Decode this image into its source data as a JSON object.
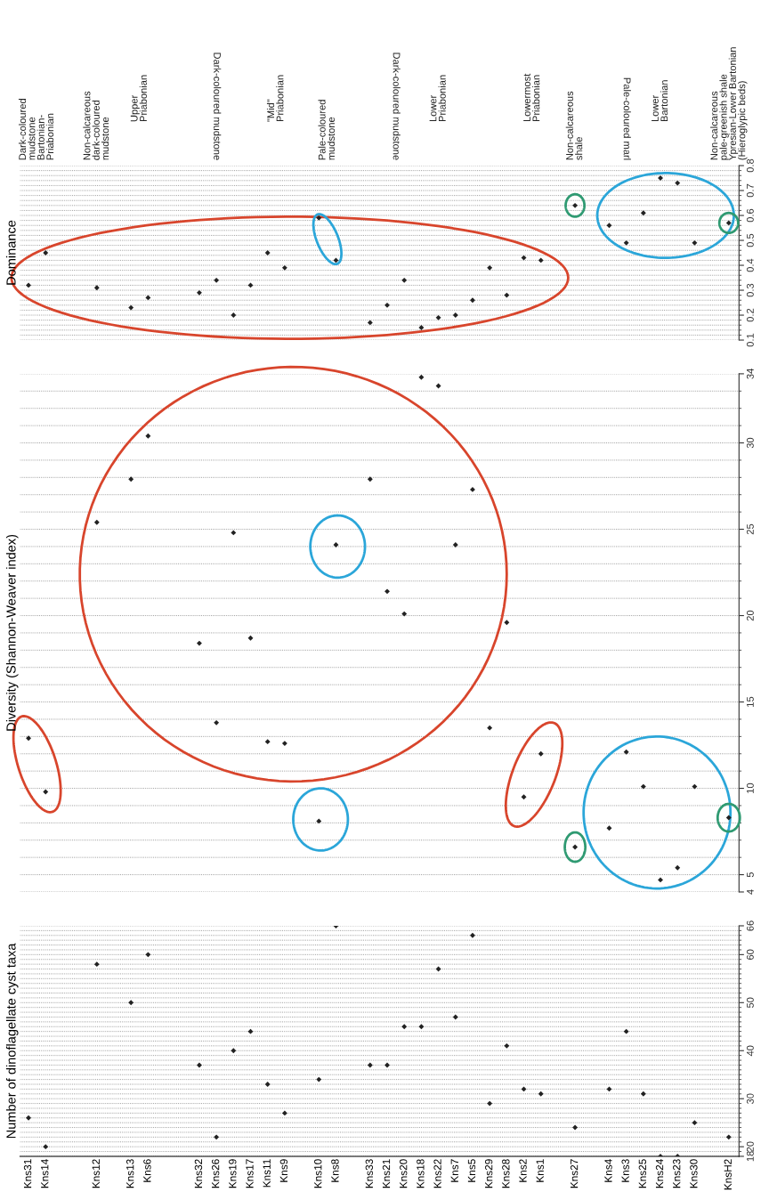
{
  "chart_data": [
    {
      "type": "scatter",
      "title": "Dominance",
      "values": [
        0.32,
        0.45,
        null,
        null,
        0.31,
        null,
        0.23,
        0.27,
        null,
        null,
        0.29,
        0.34,
        0.2,
        0.32,
        0.45,
        0.39,
        null,
        0.59,
        0.42,
        null,
        0.17,
        0.24,
        0.34,
        0.15,
        0.19,
        0.2,
        0.26,
        0.39,
        0.28,
        0.43,
        0.42,
        null,
        0.64,
        null,
        0.56,
        0.49,
        0.61,
        0.75,
        0.73,
        0.49,
        null,
        0.57
      ],
      "color": "#222222",
      "marker": "diamond",
      "grid": "y",
      "tick_labels": "y",
      "ylim": [
        0.1,
        0.8
      ],
      "yticks": [
        0.1,
        {
          "value": 0.12,
          "label": null
        },
        {
          "value": 0.14,
          "label": null
        },
        {
          "value": 0.16,
          "label": null
        },
        {
          "value": 0.18,
          "label": null
        },
        0.2,
        {
          "value": 0.22,
          "label": null
        },
        {
          "value": 0.24,
          "label": null
        },
        {
          "value": 0.26,
          "label": null
        },
        {
          "value": 0.28,
          "label": null
        },
        0.3,
        {
          "value": 0.32,
          "label": null
        },
        {
          "value": 0.34,
          "label": null
        },
        {
          "value": 0.36,
          "label": null
        },
        {
          "value": 0.38,
          "label": null
        },
        0.4,
        {
          "value": 0.42,
          "label": null
        },
        {
          "value": 0.44,
          "label": null
        },
        {
          "value": 0.46,
          "label": null
        },
        {
          "value": 0.48,
          "label": null
        },
        0.5,
        {
          "value": 0.52,
          "label": null
        },
        {
          "value": 0.54,
          "label": null
        },
        {
          "value": 0.56,
          "label": null
        },
        {
          "value": 0.58,
          "label": null
        },
        0.6,
        {
          "value": 0.62,
          "label": null
        },
        {
          "value": 0.64,
          "label": null
        },
        {
          "value": 0.66,
          "label": null
        },
        {
          "value": 0.68,
          "label": null
        },
        0.7,
        {
          "value": 0.72,
          "label": null
        },
        {
          "value": 0.74,
          "label": null
        },
        {
          "value": 0.76,
          "label": null
        },
        {
          "value": 0.78,
          "label": null
        },
        0.8
      ],
      "annotations": [
        "Dark-coloured\nmudstone\nBartonian-\nPriabonian",
        "Non-calcareous\ndark-coloured\nmudstone",
        "Upper\nPriabonian",
        "Dark-coloured mudstone",
        "\"Mid\"\nPriabonian",
        "Pale-coloured\nmudstone",
        "Dark-coloured mudstone",
        "Lower\nPriabonian",
        "Lowermost\nPriabonian",
        "Non-calcareous\nshale",
        "Pale-coloured marl",
        "Lower\nBartonian",
        "Non-calcareous\npale-greenish shale\nYpresian-Lower Bartonian\n(Hieroglypic beds)"
      ]
    },
    {
      "type": "scatter",
      "title": "Diversity (Shannon-Weaver index)",
      "values": [
        12.9,
        9.8,
        null,
        null,
        25.4,
        null,
        27.9,
        30.4,
        null,
        null,
        18.4,
        13.8,
        24.8,
        18.7,
        12.7,
        12.6,
        null,
        8.1,
        24.1,
        null,
        27.9,
        21.4,
        20.1,
        33.8,
        33.3,
        24.1,
        27.3,
        13.5,
        19.6,
        9.5,
        12,
        null,
        6.6,
        null,
        7.7,
        12.1,
        10.1,
        4.7,
        5.4,
        10.1,
        null,
        8.3
      ],
      "color": "#222222",
      "marker": "diamond",
      "grid": "y",
      "tick_labels": "y",
      "ylim": [
        4,
        34
      ],
      "yticks": [
        4,
        5,
        {
          "value": 6,
          "label": null
        },
        {
          "value": 7,
          "label": null
        },
        {
          "value": 8,
          "label": null
        },
        {
          "value": 9,
          "label": null
        },
        10,
        {
          "value": 11,
          "label": null
        },
        {
          "value": 12,
          "label": null
        },
        {
          "value": 13,
          "label": null
        },
        {
          "value": 14,
          "label": null
        },
        15,
        {
          "value": 16,
          "label": null
        },
        {
          "value": 17,
          "label": null
        },
        {
          "value": 18,
          "label": null
        },
        {
          "value": 19,
          "label": null
        },
        20,
        {
          "value": 21,
          "label": null
        },
        {
          "value": 22,
          "label": null
        },
        {
          "value": 23,
          "label": null
        },
        {
          "value": 24,
          "label": null
        },
        25,
        {
          "value": 26,
          "label": null
        },
        {
          "value": 27,
          "label": null
        },
        {
          "value": 28,
          "label": null
        },
        {
          "value": 29,
          "label": null
        },
        30,
        {
          "value": 31,
          "label": null
        },
        {
          "value": 32,
          "label": null
        },
        {
          "value": 33,
          "label": null
        },
        34
      ]
    },
    {
      "type": "scatter",
      "title": "Number of dinoflagellate cyst taxa",
      "categories": [
        "Kns31",
        "Kns14",
        null,
        null,
        "Kns12",
        null,
        "Kns13",
        "Kns6",
        null,
        null,
        "Kns32",
        "Kns26",
        "Kns19",
        "Kns17",
        "Kns11",
        "Kns9",
        null,
        "Kns10",
        "Kns8",
        null,
        "Kns33",
        "Kns21",
        "Kns20",
        "Kns18",
        "Kns22",
        "Kns7",
        "Kns5",
        "Kns29",
        "Kns28",
        "Kns2",
        "Kns1",
        null,
        "Kns27",
        null,
        "Kns4",
        "Kns3",
        "Kns25",
        "Kns24",
        "Kns23",
        "Kns30",
        null,
        "KnsH2"
      ],
      "values": [
        26,
        20,
        null,
        null,
        58,
        null,
        50,
        60,
        null,
        null,
        37,
        22,
        40,
        44,
        33,
        27,
        null,
        34,
        66,
        null,
        37,
        37,
        45,
        45,
        57,
        47,
        64,
        29,
        41,
        32,
        31,
        null,
        24,
        null,
        32,
        44,
        31,
        18,
        18,
        25,
        null,
        22
      ],
      "color": "#222222",
      "marker": "diamond",
      "grid": "y",
      "ylim": [
        18,
        66
      ],
      "yticks": [
        18,
        {
          "value": 19,
          "label": null
        },
        20,
        {
          "value": 21,
          "label": null
        },
        {
          "value": 22,
          "label": null
        },
        {
          "value": 23,
          "label": null
        },
        {
          "value": 24,
          "label": null
        },
        {
          "value": 25,
          "label": null
        },
        {
          "value": 26,
          "label": null
        },
        {
          "value": 27,
          "label": null
        },
        {
          "value": 28,
          "label": null
        },
        {
          "value": 29,
          "label": null
        },
        30,
        {
          "value": 31,
          "label": null
        },
        {
          "value": 32,
          "label": null
        },
        {
          "value": 33,
          "label": null
        },
        {
          "value": 34,
          "label": null
        },
        {
          "value": 35,
          "label": null
        },
        {
          "value": 36,
          "label": null
        },
        {
          "value": 37,
          "label": null
        },
        {
          "value": 38,
          "label": null
        },
        {
          "value": 39,
          "label": null
        },
        40,
        {
          "value": 41,
          "label": null
        },
        {
          "value": 42,
          "label": null
        },
        {
          "value": 43,
          "label": null
        },
        {
          "value": 44,
          "label": null
        },
        {
          "value": 45,
          "label": null
        },
        {
          "value": 46,
          "label": null
        },
        {
          "value": 47,
          "label": null
        },
        {
          "value": 48,
          "label": null
        },
        {
          "value": 49,
          "label": null
        },
        50,
        {
          "value": 51,
          "label": null
        },
        {
          "value": 52,
          "label": null
        },
        {
          "value": 53,
          "label": null
        },
        {
          "value": 54,
          "label": null
        },
        {
          "value": 55,
          "label": null
        },
        {
          "value": 56,
          "label": null
        },
        {
          "value": 57,
          "label": null
        },
        {
          "value": 58,
          "label": null
        },
        {
          "value": 59,
          "label": null
        },
        60,
        {
          "value": 61,
          "label": null
        },
        {
          "value": 62,
          "label": null
        },
        {
          "value": 63,
          "label": null
        },
        {
          "value": 64,
          "label": null
        },
        {
          "value": 65,
          "label": null
        },
        66
      ]
    }
  ]
}
